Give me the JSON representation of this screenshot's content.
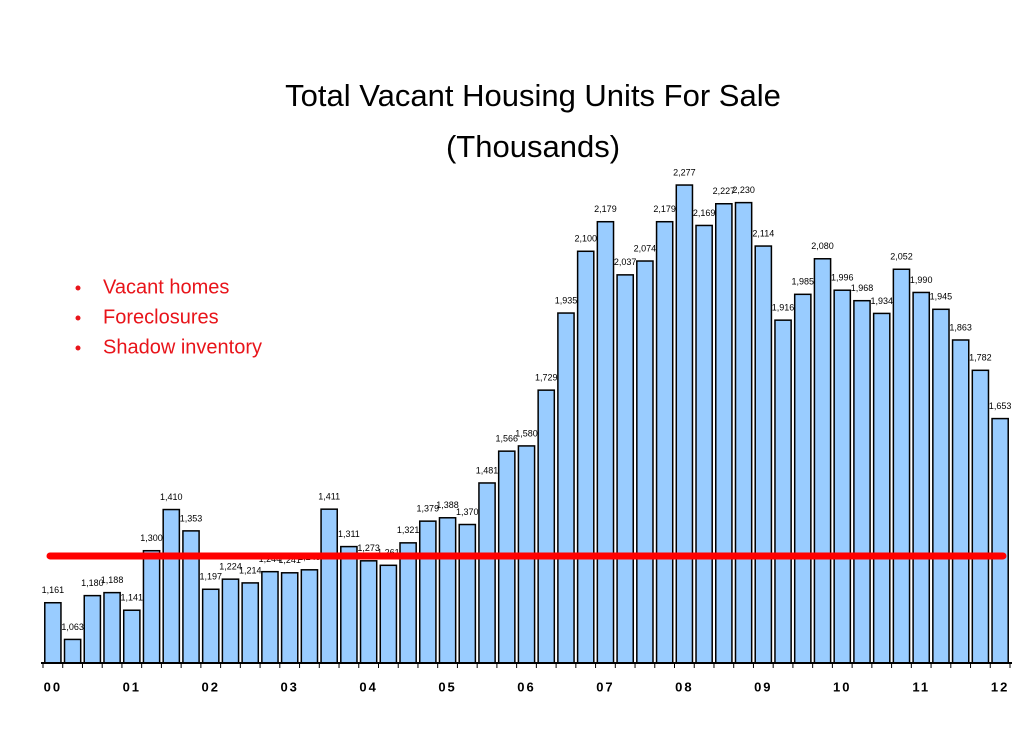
{
  "chart_data": {
    "type": "bar",
    "title": [
      "Total Vacant Housing Units For Sale",
      "(Thousands)"
    ],
    "annotations": [
      "Vacant homes",
      "Foreclosures",
      "Shadow inventory"
    ],
    "categories": [
      "00",
      null,
      null,
      null,
      "01",
      null,
      null,
      null,
      "02",
      null,
      null,
      null,
      "03",
      null,
      null,
      null,
      "04",
      null,
      null,
      null,
      "05",
      null,
      null,
      null,
      "06",
      null,
      null,
      null,
      "07",
      null,
      null,
      null,
      "08",
      null,
      null,
      null,
      "09",
      null,
      null,
      null,
      "10",
      null,
      null,
      null,
      "11",
      null,
      null,
      null,
      "12"
    ],
    "values": [
      1161,
      1063,
      1180,
      1188,
      1141,
      1300,
      1410,
      1353,
      1197,
      1224,
      1214,
      1244,
      1241,
      1249,
      1411,
      1311,
      1273,
      1261,
      1321,
      1379,
      1388,
      1370,
      1481,
      1566,
      1580,
      1729,
      1935,
      2100,
      2179,
      2037,
      2074,
      2179,
      2277,
      2169,
      2227,
      2230,
      2114,
      1916,
      1985,
      2080,
      1996,
      1968,
      1934,
      2052,
      1990,
      1945,
      1863,
      1782,
      1653
    ],
    "value_labels": [
      "1,161",
      "1,063",
      "1,180",
      "1,188",
      "1,141",
      "1,300",
      "1,410",
      "1,353",
      "1,197",
      "1,224",
      "1,214",
      "1,244",
      "1,241",
      "1,249",
      "1,411",
      "1,311",
      "1,273",
      "1,261",
      "1,321",
      "1,379",
      "1,388",
      "1,370",
      "1,481",
      "1,566",
      "1,580",
      "1,729",
      "1,935",
      "2,100",
      "2,179",
      "2,037",
      "2,074",
      "2,179",
      "2,277",
      "2,169",
      "2,227",
      "2,230",
      "2,114",
      "1,916",
      "1,985",
      "2,080",
      "1,996",
      "1,968",
      "1,934",
      "2,052",
      "1,990",
      "1,945",
      "1,863",
      "1,782",
      "1,653"
    ],
    "color": "#99ccff",
    "ylim": [
      1000,
      2400
    ],
    "reference_line": {
      "value": 1286,
      "color": "#ff0000"
    }
  }
}
